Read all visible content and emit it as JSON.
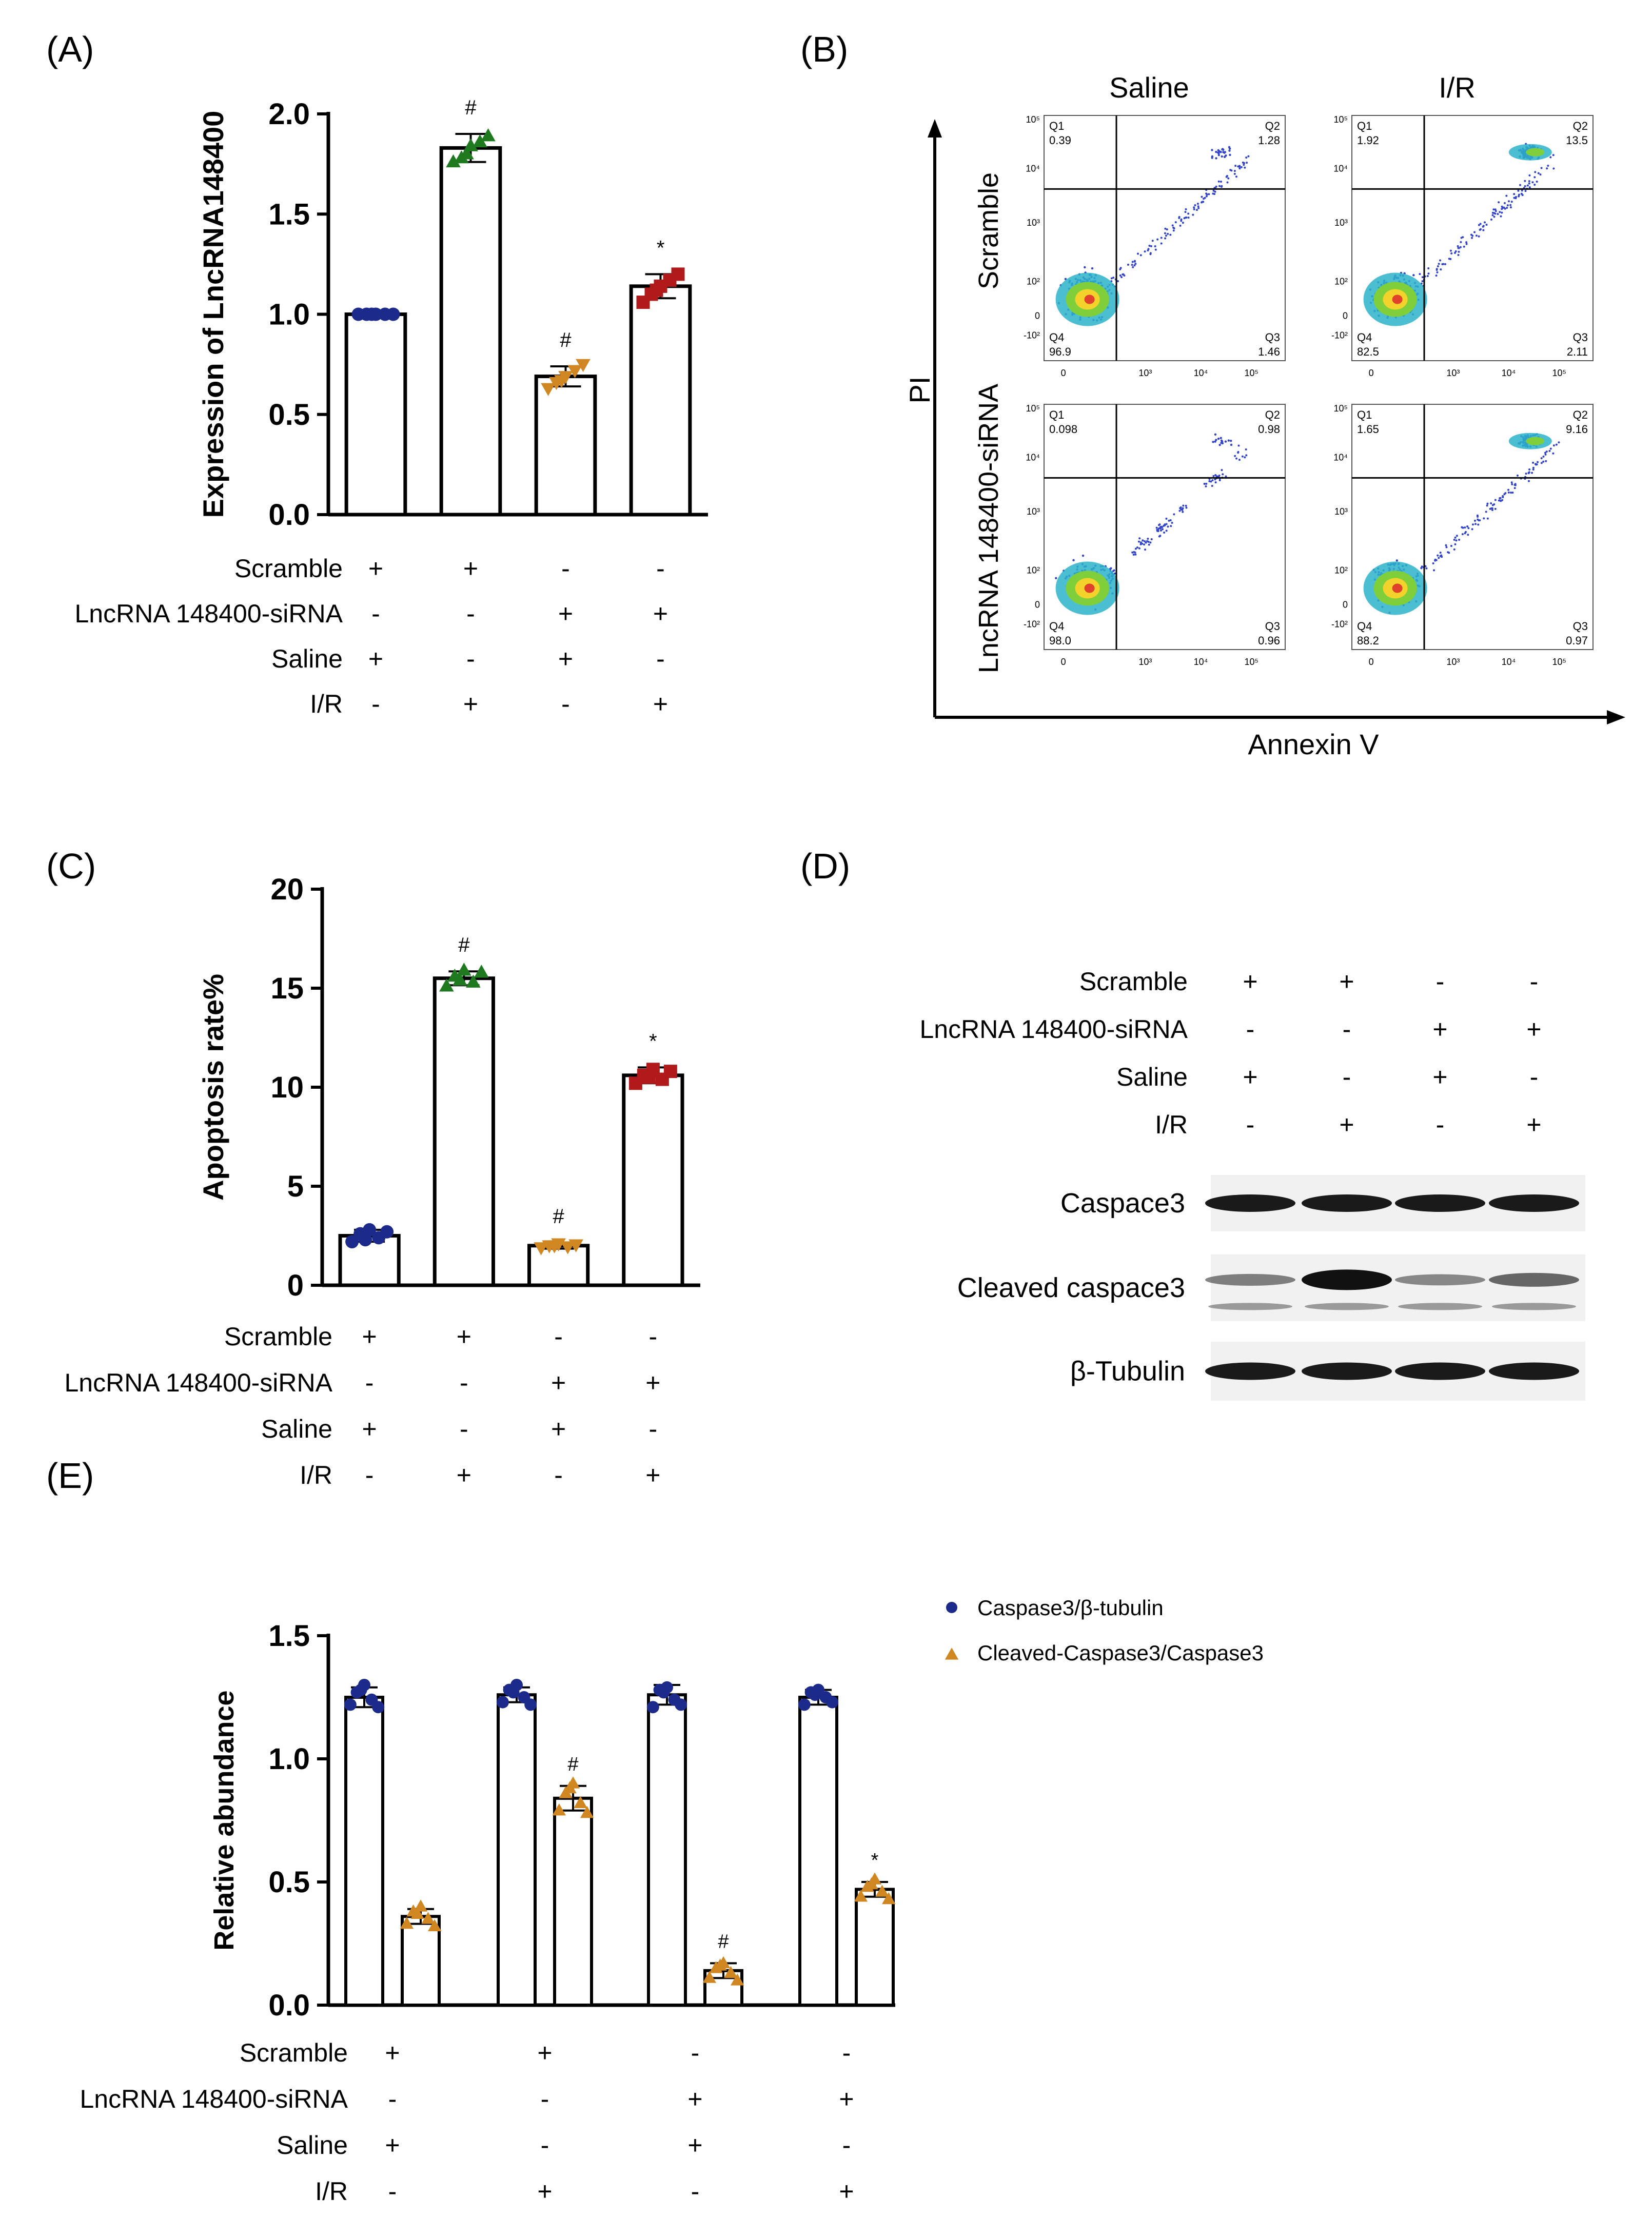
{
  "figure": {
    "colors": {
      "navy": "#1c2a8c",
      "green": "#1f7a1f",
      "orange": "#d08722",
      "red": "#b01a1a",
      "axis": "#000000"
    }
  },
  "conditions": {
    "labels": [
      "Scramble",
      "LncRNA 148400-siRNA",
      "Saline",
      "I/R"
    ],
    "groups": [
      [
        "+",
        "-",
        "+",
        "-"
      ],
      [
        "+",
        "-",
        "-",
        "+"
      ],
      [
        "-",
        "+",
        "+",
        "-"
      ],
      [
        "-",
        "+",
        "-",
        "+"
      ]
    ]
  },
  "panel_a": {
    "tag": "(A)",
    "chart_data": {
      "type": "bar",
      "title": "",
      "xlabel": "",
      "ylabel": "Expression of LncRNA148400",
      "ylim": [
        0,
        2.0
      ],
      "yticks": [
        "0.0",
        "0.5",
        "1.0",
        "1.5",
        "2.0"
      ],
      "categories": [
        "Scramble+Saline",
        "Scramble+I/R",
        "siRNA+Saline",
        "siRNA+I/R"
      ],
      "values": [
        1.0,
        1.83,
        0.69,
        1.14
      ],
      "errors": [
        0.0,
        0.07,
        0.05,
        0.06
      ],
      "markers": [
        "circle",
        "triangle",
        "triangle-down",
        "square"
      ],
      "marker_colors": [
        "#1c2a8c",
        "#1f7a1f",
        "#d08722",
        "#b01a1a"
      ],
      "points": [
        [
          1.0,
          1.0,
          1.0,
          1.0,
          1.0,
          1.0
        ],
        [
          1.76,
          1.78,
          1.84,
          1.86,
          1.89,
          1.8
        ],
        [
          0.63,
          0.66,
          0.69,
          0.72,
          0.75,
          0.67
        ],
        [
          1.06,
          1.1,
          1.14,
          1.17,
          1.2,
          1.12
        ]
      ],
      "annotations": [
        "",
        "#",
        "#",
        "*"
      ]
    }
  },
  "panel_b": {
    "tag": "(B)",
    "col_labels": [
      "Saline",
      "I/R"
    ],
    "row_labels": [
      "Scramble",
      "LncRNA 148400-siRNA"
    ],
    "ylabel": "PI",
    "xlabel": "Annexin V",
    "y_ticks": [
      "10⁵",
      "10⁴",
      "10³",
      "10²",
      "0",
      "-10²"
    ],
    "x_ticks": [
      "0",
      "10³",
      "10⁴",
      "10⁵"
    ],
    "plots": [
      {
        "q1": "Q1",
        "q1v": "0.39",
        "q2": "Q2",
        "q2v": "1.28",
        "q3": "Q3",
        "q3v": "1.46",
        "q4": "Q4",
        "q4v": "96.9"
      },
      {
        "q1": "Q1",
        "q1v": "1.92",
        "q2": "Q2",
        "q2v": "13.5",
        "q3": "Q3",
        "q3v": "2.11",
        "q4": "Q4",
        "q4v": "82.5"
      },
      {
        "q1": "Q1",
        "q1v": "0.098",
        "q2": "Q2",
        "q2v": "0.98",
        "q3": "Q3",
        "q3v": "0.96",
        "q4": "Q4",
        "q4v": "98.0"
      },
      {
        "q1": "Q1",
        "q1v": "1.65",
        "q2": "Q2",
        "q2v": "9.16",
        "q3": "Q3",
        "q3v": "0.97",
        "q4": "Q4",
        "q4v": "88.2"
      }
    ]
  },
  "panel_c": {
    "tag": "(C)",
    "chart_data": {
      "type": "bar",
      "title": "",
      "xlabel": "",
      "ylabel": "Apoptosis rate%",
      "ylim": [
        0,
        20
      ],
      "yticks": [
        "0",
        "5",
        "10",
        "15",
        "20"
      ],
      "categories": [
        "Scramble+Saline",
        "Scramble+I/R",
        "siRNA+Saline",
        "siRNA+I/R"
      ],
      "values": [
        2.5,
        15.5,
        2.0,
        10.6
      ],
      "errors": [
        0.3,
        0.35,
        0.15,
        0.4
      ],
      "markers": [
        "circle",
        "triangle",
        "triangle-down",
        "square"
      ],
      "marker_colors": [
        "#1c2a8c",
        "#1f7a1f",
        "#d08722",
        "#b01a1a"
      ],
      "points": [
        [
          2.2,
          2.6,
          2.8,
          2.4,
          2.7,
          2.3
        ],
        [
          15.1,
          15.6,
          15.9,
          15.3,
          15.8,
          15.4
        ],
        [
          1.9,
          2.0,
          2.1,
          1.95,
          2.05,
          2.0
        ],
        [
          10.2,
          10.6,
          10.9,
          10.4,
          10.8,
          10.5
        ]
      ],
      "annotations": [
        "",
        "#",
        "#",
        "*"
      ]
    }
  },
  "panel_d": {
    "tag": "(D)",
    "bands": [
      "Caspace3",
      "Cleaved caspace3",
      "β-Tubulin"
    ]
  },
  "panel_e": {
    "tag": "(E)",
    "chart_data": {
      "type": "bar",
      "title": "",
      "xlabel": "",
      "ylabel": "Relative abundance",
      "ylim": [
        0,
        1.5
      ],
      "yticks": [
        "0.0",
        "0.5",
        "1.0",
        "1.5"
      ],
      "categories": [
        "Scramble+Saline",
        "Scramble+I/R",
        "siRNA+Saline",
        "siRNA+I/R"
      ],
      "legend_position": "top-right",
      "series": [
        {
          "name": "Caspase3/β-tubulin",
          "marker": "circle",
          "color": "#1c2a8c",
          "values": [
            1.25,
            1.26,
            1.26,
            1.25
          ],
          "errors": [
            0.04,
            0.03,
            0.04,
            0.03
          ],
          "points": [
            [
              1.22,
              1.27,
              1.3,
              1.24,
              1.21,
              1.28
            ],
            [
              1.23,
              1.28,
              1.3,
              1.25,
              1.22,
              1.27
            ],
            [
              1.21,
              1.28,
              1.29,
              1.24,
              1.22,
              1.27
            ],
            [
              1.22,
              1.27,
              1.28,
              1.25,
              1.23,
              1.26
            ]
          ],
          "annotations": [
            "",
            "",
            "",
            ""
          ]
        },
        {
          "name": "Cleaved-Caspase3/Caspase3",
          "marker": "triangle",
          "color": "#d08722",
          "values": [
            0.36,
            0.84,
            0.14,
            0.47
          ],
          "errors": [
            0.03,
            0.05,
            0.03,
            0.03
          ],
          "points": [
            [
              0.33,
              0.38,
              0.4,
              0.35,
              0.32,
              0.37
            ],
            [
              0.79,
              0.86,
              0.9,
              0.82,
              0.78,
              0.88
            ],
            [
              0.11,
              0.15,
              0.17,
              0.13,
              0.1,
              0.16
            ],
            [
              0.44,
              0.48,
              0.51,
              0.46,
              0.43,
              0.49
            ]
          ],
          "annotations": [
            "",
            "#",
            "#",
            "*"
          ]
        }
      ]
    }
  }
}
